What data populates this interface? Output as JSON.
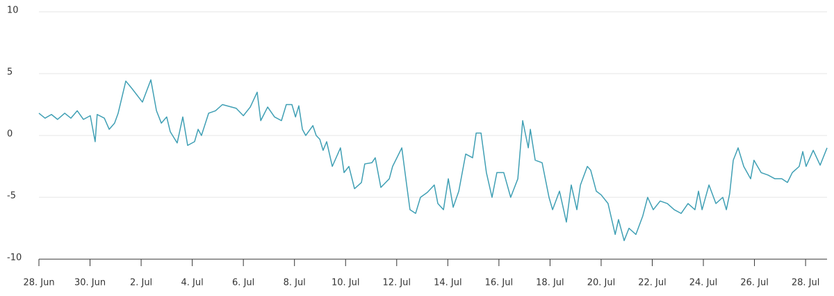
{
  "chart_data": {
    "type": "line",
    "x": [
      0,
      0.24,
      0.49,
      0.73,
      1.01,
      1.25,
      1.5,
      1.74,
      2.01,
      2.2,
      2.28,
      2.56,
      2.75,
      2.96,
      3.1,
      3.4,
      3.64,
      4.05,
      4.38,
      4.6,
      4.79,
      5.0,
      5.14,
      5.41,
      5.63,
      5.82,
      6.09,
      6.23,
      6.36,
      6.64,
      6.91,
      7.18,
      7.72,
      8.0,
      8.27,
      8.54,
      8.68,
      8.95,
      9.22,
      9.49,
      9.68,
      9.9,
      10.04,
      10.17,
      10.31,
      10.44,
      10.72,
      10.85,
      10.99,
      11.12,
      11.26,
      11.48,
      11.8,
      11.94,
      12.13,
      12.35,
      12.62,
      12.75,
      13.03,
      13.16,
      13.38,
      13.71,
      13.84,
      14.2,
      14.39,
      14.52,
      14.74,
      14.93,
      15.2,
      15.47,
      15.61,
      15.83,
      16.02,
      16.21,
      16.43,
      16.7,
      16.97,
      17.11,
      17.3,
      17.51,
      17.73,
      17.92,
      18.19,
      18.46,
      18.74,
      18.93,
      19.15,
      19.23,
      19.42,
      19.69,
      19.96,
      20.1,
      20.37,
      20.64,
      20.83,
      21.05,
      21.19,
      21.46,
      21.59,
      21.81,
      22.0,
      22.27,
      22.55,
      22.68,
      22.9,
      23.09,
      23.36,
      23.63,
      23.82,
      24.04,
      24.31,
      24.59,
      24.86,
      25.13,
      25.4,
      25.67,
      25.81,
      25.95,
      26.22,
      26.49,
      26.76,
      26.9,
      27.03,
      27.17,
      27.36,
      27.58,
      27.85,
      27.98,
      28.26,
      28.53,
      28.8,
      29.07,
      29.29,
      29.48,
      29.75,
      29.89,
      30.02,
      30.3,
      30.57,
      30.84
    ],
    "series": [
      {
        "color": "#3f9fb4",
        "values": [
          1.8,
          1.4,
          1.7,
          1.3,
          1.8,
          1.4,
          2.0,
          1.3,
          1.6,
          -0.5,
          1.7,
          1.4,
          0.5,
          1.0,
          1.8,
          4.4,
          3.8,
          2.7,
          4.5,
          2.0,
          1.0,
          1.5,
          0.3,
          -0.6,
          1.5,
          -0.8,
          -0.5,
          0.5,
          0,
          1.8,
          2.0,
          2.5,
          2.2,
          1.6,
          2.3,
          3.5,
          1.2,
          2.3,
          1.5,
          1.2,
          2.5,
          2.5,
          1.5,
          2.4,
          0.5,
          0,
          0.8,
          0,
          -0.3,
          -1.2,
          -0.5,
          -2.5,
          -1.0,
          -3.0,
          -2.5,
          -4.3,
          -3.8,
          -2.3,
          -2.2,
          -1.8,
          -4.2,
          -3.5,
          -2.5,
          -1.0,
          -4.0,
          -6.0,
          -6.3,
          -5.0,
          -4.6,
          -4.0,
          -5.5,
          -6.0,
          -3.5,
          -5.8,
          -4.5,
          -1.5,
          -1.8,
          0.2,
          0.2,
          -3.0,
          -5.0,
          -3.0,
          -3.0,
          -5.0,
          -3.5,
          1.2,
          -1.0,
          0.5,
          -2.0,
          -2.2,
          -5.0,
          -6.0,
          -4.5,
          -7.0,
          -4.0,
          -6.0,
          -4.0,
          -2.5,
          -2.8,
          -4.5,
          -4.8,
          -5.5,
          -8.0,
          -6.8,
          -8.5,
          -7.5,
          -8.0,
          -6.5,
          -5.0,
          -6.0,
          -5.3,
          -5.5,
          -6.0,
          -6.3,
          -5.5,
          -6.0,
          -4.5,
          -6.0,
          -4.0,
          -5.5,
          -5.0,
          -6.0,
          -4.7,
          -2.0,
          -1.0,
          -2.5,
          -3.5,
          -2.0,
          -3.0,
          -3.2,
          -3.5,
          -3.5,
          -3.8,
          -3.0,
          -2.5,
          -1.3,
          -2.5,
          -1.2,
          -2.4,
          -1.0
        ]
      }
    ],
    "xlim": [
      0,
      30.84
    ],
    "xticks": [
      {
        "value": 0,
        "label": "28. Jun"
      },
      {
        "value": 2,
        "label": "30. Jun"
      },
      {
        "value": 4,
        "label": "2. Jul"
      },
      {
        "value": 6,
        "label": "4. Jul"
      },
      {
        "value": 8,
        "label": "6. Jul"
      },
      {
        "value": 10,
        "label": "8. Jul"
      },
      {
        "value": 12,
        "label": "10. Jul"
      },
      {
        "value": 14,
        "label": "12. Jul"
      },
      {
        "value": 16,
        "label": "14. Jul"
      },
      {
        "value": 18,
        "label": "16. Jul"
      },
      {
        "value": 20,
        "label": "18. Jul"
      },
      {
        "value": 22,
        "label": "20. Jul"
      },
      {
        "value": 24,
        "label": "22. Jul"
      },
      {
        "value": 26,
        "label": "24. Jul"
      },
      {
        "value": 28,
        "label": "26. Jul"
      },
      {
        "value": 30,
        "label": "28. Jul"
      }
    ],
    "ylim": [
      -10,
      10
    ],
    "yticks": [
      -10,
      -5,
      0,
      5,
      10
    ],
    "grid": true
  }
}
